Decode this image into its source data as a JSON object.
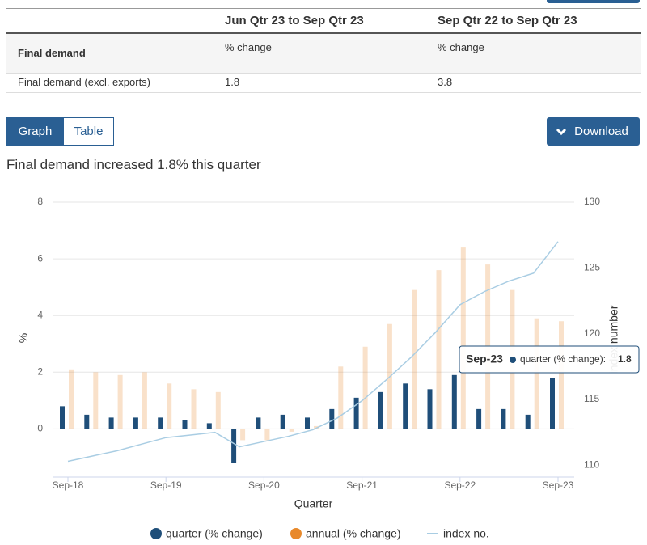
{
  "table": {
    "columns": [
      "Jun Qtr 23 to Sep Qtr 23",
      "Sep Qtr 22 to Sep Qtr 23"
    ],
    "rows": [
      [
        "Final demand",
        "% change",
        "% change"
      ],
      [
        "Final demand (excl. exports)",
        "1.8",
        "3.8"
      ]
    ]
  },
  "controls": {
    "tabs": [
      "Graph",
      "Table"
    ],
    "download": "Download"
  },
  "chart_data": {
    "type": "bar",
    "title": "Final demand increased 1.8% this quarter",
    "x_label": "Quarter",
    "y_label": "%",
    "y2_label": "index number",
    "categories": [
      "Sep-18",
      null,
      null,
      null,
      "Sep-19",
      null,
      null,
      null,
      "Sep-20",
      null,
      null,
      null,
      "Sep-21",
      null,
      null,
      null,
      "Sep-22",
      null,
      null,
      null,
      "Sep-23"
    ],
    "series": [
      {
        "name": "quarter (% change)",
        "color": "#1f4e79",
        "type": "bar",
        "values": [
          0.8,
          0.5,
          0.4,
          0.4,
          0.4,
          0.3,
          0.2,
          -1.2,
          0.4,
          0.5,
          0.4,
          0.7,
          1.1,
          1.3,
          1.6,
          1.4,
          1.9,
          0.7,
          0.7,
          0.5,
          1.8
        ]
      },
      {
        "name": "annual (% change)",
        "color": "#e8892b",
        "type": "bar",
        "values": [
          2.1,
          2.0,
          1.9,
          2.0,
          1.6,
          1.4,
          1.3,
          -0.4,
          -0.4,
          -0.1,
          0.1,
          2.2,
          2.9,
          3.7,
          4.9,
          5.6,
          6.4,
          5.8,
          4.9,
          3.9,
          3.8
        ]
      },
      {
        "name": "index no.",
        "color": "#a9cde3",
        "type": "line",
        "axis": "y2",
        "values": [
          110.3,
          110.7,
          111.1,
          111.6,
          112.1,
          112.3,
          112.5,
          111.4,
          111.8,
          112.2,
          112.7,
          113.6,
          114.9,
          116.5,
          118.2,
          120.1,
          122.2,
          123.2,
          124.0,
          124.6,
          127.0
        ]
      }
    ],
    "ylim": [
      -1.7,
      8
    ],
    "yticks": [
      0,
      2,
      4,
      6,
      8
    ],
    "y2lim": [
      109.1,
      130
    ],
    "y2ticks": [
      110,
      115,
      120,
      125,
      130
    ],
    "grid": true,
    "tooltip": {
      "category": "Sep-23",
      "series": "quarter (% change):",
      "value": 1.8
    }
  }
}
